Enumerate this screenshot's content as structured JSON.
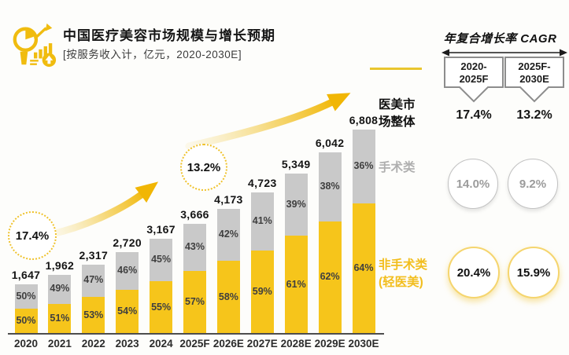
{
  "header": {
    "title": "中国医疗美容市场规模与增长预期",
    "subtitle": "[按服务收入计，亿元，2020-2030E]",
    "icon": "chart-magnifier-icon"
  },
  "chart_data": {
    "type": "bar",
    "stacked": true,
    "title": "中国医疗美容市场规模与增长预期",
    "unit": "亿元",
    "categories": [
      "2020",
      "2021",
      "2022",
      "2023",
      "2024",
      "2025F",
      "2026E",
      "2027E",
      "2028E",
      "2029E",
      "2030E"
    ],
    "totals": [
      1647,
      1962,
      2317,
      2720,
      3167,
      3666,
      4173,
      4723,
      5349,
      6042,
      6808
    ],
    "total_labels": [
      "1,647",
      "1,962",
      "2,317",
      "2,720",
      "3,167",
      "3,666",
      "4,173",
      "4,723",
      "5,349",
      "6,042",
      "6,808"
    ],
    "series": [
      {
        "name": "非手术类(轻医美)",
        "color": "#F6C51B",
        "share_pct": [
          50,
          51,
          53,
          54,
          55,
          57,
          58,
          59,
          61,
          62,
          64
        ]
      },
      {
        "name": "手术类",
        "color": "#C9C9C9",
        "share_pct": [
          50,
          49,
          47,
          46,
          45,
          43,
          42,
          41,
          39,
          38,
          36
        ]
      }
    ],
    "annotations": [
      {
        "label": "17.4%",
        "meaning": "CAGR 2020-2025F"
      },
      {
        "label": "13.2%",
        "meaning": "CAGR 2025F-2030E"
      }
    ],
    "legend_position": "right",
    "grid": false
  },
  "legend": {
    "overall": "医美市场整体",
    "surgical": "手术类",
    "nonsurgical_line1": "非手术类",
    "nonsurgical_line2": "(轻医美)"
  },
  "cagr_panel": {
    "title": "年复合增长率 CAGR",
    "periods": [
      {
        "line1": "2020-",
        "line2": "2025F"
      },
      {
        "line1": "2025F-",
        "line2": "2030E"
      }
    ],
    "rows": [
      {
        "label": "医美市场整体",
        "style": "text",
        "values": [
          "17.4%",
          "13.2%"
        ]
      },
      {
        "label": "手术类",
        "style": "circle-gray",
        "values": [
          "14.0%",
          "9.2%"
        ]
      },
      {
        "label": "非手术类(轻医美)",
        "style": "circle-yellow",
        "values": [
          "20.4%",
          "15.9%"
        ]
      }
    ]
  },
  "colors": {
    "nonsurgical_yellow": "#F6C51B",
    "surgical_gray": "#C9C9C9",
    "accent_yellow": "#F1B604",
    "axis": "#4D4D4D",
    "gray_text": "#9B9B9B"
  }
}
